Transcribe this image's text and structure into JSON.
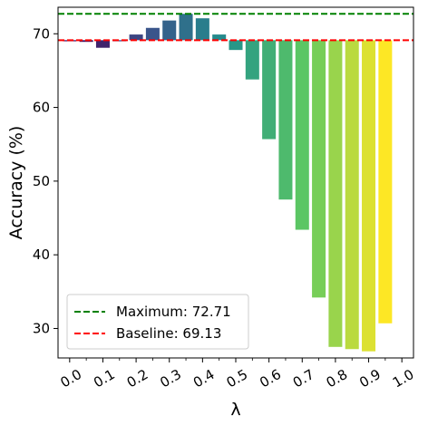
{
  "chart_data": {
    "type": "bar",
    "xlabel": "λ",
    "ylabel": "Accuracy (%)",
    "x_ticks": [
      "0.0",
      "0.1",
      "0.2",
      "0.3",
      "0.4",
      "0.5",
      "0.6",
      "0.7",
      "0.8",
      "0.9",
      "1.0"
    ],
    "y_ticks": [
      30,
      40,
      50,
      60,
      70
    ],
    "xlim": [
      -0.035,
      1.035
    ],
    "ylim": [
      26,
      73.6
    ],
    "bar_baseline": 69.13,
    "bars": [
      {
        "x": 0.0,
        "value": 69.13
      },
      {
        "x": 0.05,
        "value": 68.9
      },
      {
        "x": 0.1,
        "value": 68.1
      },
      {
        "x": 0.15,
        "value": 69.0
      },
      {
        "x": 0.2,
        "value": 69.9
      },
      {
        "x": 0.25,
        "value": 70.8
      },
      {
        "x": 0.3,
        "value": 71.8
      },
      {
        "x": 0.35,
        "value": 72.71
      },
      {
        "x": 0.4,
        "value": 72.1
      },
      {
        "x": 0.45,
        "value": 69.9
      },
      {
        "x": 0.5,
        "value": 67.8
      },
      {
        "x": 0.55,
        "value": 63.8
      },
      {
        "x": 0.6,
        "value": 55.7
      },
      {
        "x": 0.65,
        "value": 47.5
      },
      {
        "x": 0.7,
        "value": 43.4
      },
      {
        "x": 0.75,
        "value": 34.2
      },
      {
        "x": 0.8,
        "value": 27.5
      },
      {
        "x": 0.85,
        "value": 27.2
      },
      {
        "x": 0.9,
        "value": 26.9
      },
      {
        "x": 0.95,
        "value": 30.7
      }
    ],
    "colormap": [
      "#440154",
      "#3b528b",
      "#21918c",
      "#5ec962",
      "#fde725"
    ],
    "reference_lines": [
      {
        "label": "Maximum: 72.71",
        "value": 72.71,
        "color": "#008000",
        "style": "dashed"
      },
      {
        "label": "Baseline: 69.13",
        "value": 69.13,
        "color": "#ff0000",
        "style": "dashed"
      }
    ],
    "legend_position": "lower-left",
    "grid": false
  }
}
